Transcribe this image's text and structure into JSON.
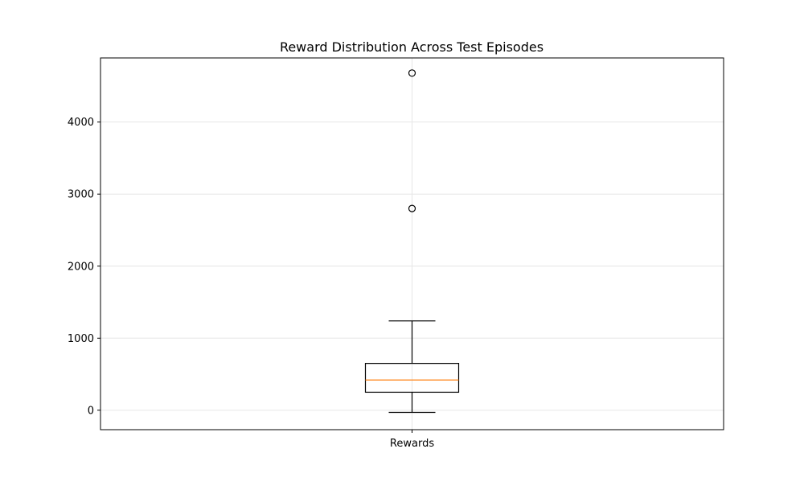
{
  "chart_data": {
    "type": "box",
    "title": "Reward Distribution Across Test Episodes",
    "xlabel": "",
    "ylabel": "",
    "categories": [
      "Rewards"
    ],
    "ylim": [
      -270,
      4890
    ],
    "yticks": [
      0,
      1000,
      2000,
      3000,
      4000
    ],
    "grid": true,
    "boxes": [
      {
        "category": "Rewards",
        "whisker_low": -30,
        "q1": 250,
        "median": 420,
        "q3": 650,
        "whisker_high": 1240,
        "outliers": [
          2800,
          4680
        ]
      }
    ]
  },
  "colors": {
    "median": "#ff7f0e",
    "box": "#000000",
    "grid": "#e6e6e6"
  }
}
